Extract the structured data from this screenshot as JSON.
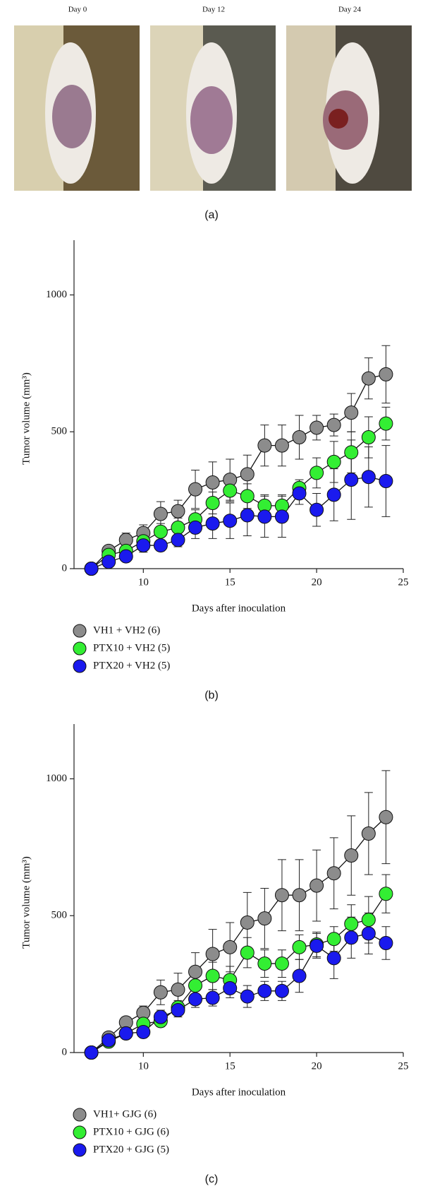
{
  "photos": {
    "labels": [
      "Day 0",
      "Day 12",
      "Day 24"
    ],
    "caption": "(a)"
  },
  "chart_data": [
    {
      "type": "line",
      "caption": "(b)",
      "xlabel": "Days after inoculation",
      "ylabel": "Tumor volume (mm³)",
      "xlim": [
        6,
        25
      ],
      "ylim": [
        0,
        1200
      ],
      "xticks": [
        10,
        15,
        20,
        25
      ],
      "yticks": [
        0,
        500,
        1000
      ],
      "x": [
        7,
        8,
        9,
        10,
        11,
        12,
        13,
        14,
        15,
        16,
        17,
        18,
        19,
        20,
        21,
        22,
        23,
        24
      ],
      "series": [
        {
          "name": "VH1 + VH2 (6)",
          "color": "#8c8c8c",
          "values": [
            0,
            65,
            105,
            130,
            200,
            210,
            290,
            315,
            325,
            345,
            450,
            450,
            480,
            515,
            525,
            570,
            695,
            710
          ],
          "errors": [
            0,
            15,
            25,
            30,
            45,
            40,
            70,
            75,
            75,
            70,
            75,
            75,
            80,
            45,
            40,
            70,
            75,
            105
          ]
        },
        {
          "name": "PTX10 + VH2 (5)",
          "color": "#33ee33",
          "values": [
            0,
            50,
            65,
            100,
            135,
            150,
            180,
            240,
            285,
            265,
            230,
            230,
            295,
            350,
            390,
            425,
            480,
            530
          ],
          "errors": [
            0,
            15,
            20,
            25,
            30,
            35,
            35,
            40,
            40,
            45,
            40,
            40,
            30,
            55,
            75,
            75,
            75,
            60
          ]
        },
        {
          "name": "PTX20 + VH2 (5)",
          "color": "#1a1aee",
          "values": [
            0,
            25,
            45,
            85,
            85,
            105,
            150,
            165,
            175,
            195,
            190,
            190,
            275,
            215,
            270,
            325,
            335,
            320
          ],
          "errors": [
            0,
            10,
            15,
            25,
            20,
            25,
            40,
            55,
            65,
            75,
            75,
            75,
            40,
            60,
            95,
            145,
            110,
            130
          ]
        }
      ]
    },
    {
      "type": "line",
      "caption": "(c)",
      "xlabel": "Days after inoculation",
      "ylabel": "Tumor volume (mm³)",
      "xlim": [
        6,
        25
      ],
      "ylim": [
        0,
        1200
      ],
      "xticks": [
        10,
        15,
        20,
        25
      ],
      "yticks": [
        0,
        500,
        1000
      ],
      "x": [
        7,
        8,
        9,
        10,
        11,
        12,
        13,
        14,
        15,
        16,
        17,
        18,
        19,
        20,
        21,
        22,
        23,
        24
      ],
      "series": [
        {
          "name": "VH1+ GJG (6)",
          "color": "#8c8c8c",
          "values": [
            0,
            55,
            110,
            145,
            220,
            230,
            295,
            360,
            385,
            475,
            490,
            575,
            575,
            610,
            655,
            720,
            800,
            860
          ],
          "errors": [
            0,
            15,
            20,
            25,
            45,
            60,
            70,
            90,
            90,
            110,
            110,
            130,
            130,
            130,
            130,
            145,
            150,
            170
          ]
        },
        {
          "name": "PTX10 + GJG (6)",
          "color": "#33ee33",
          "values": [
            0,
            40,
            70,
            105,
            115,
            165,
            245,
            280,
            265,
            365,
            325,
            325,
            385,
            395,
            415,
            470,
            485,
            580
          ],
          "errors": [
            0,
            10,
            15,
            20,
            20,
            25,
            35,
            50,
            50,
            55,
            50,
            50,
            45,
            45,
            45,
            70,
            85,
            70
          ]
        },
        {
          "name": "PTX20 + GJG (5)",
          "color": "#1a1aee",
          "values": [
            0,
            45,
            70,
            75,
            130,
            155,
            195,
            200,
            235,
            205,
            225,
            225,
            280,
            390,
            345,
            420,
            435,
            400
          ],
          "errors": [
            0,
            10,
            15,
            15,
            25,
            25,
            30,
            30,
            35,
            40,
            35,
            35,
            60,
            45,
            75,
            75,
            75,
            60
          ]
        }
      ]
    }
  ]
}
